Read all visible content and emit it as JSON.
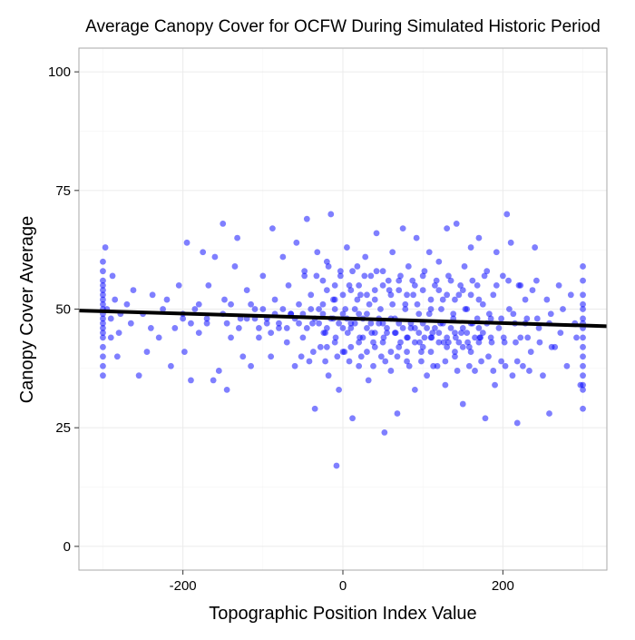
{
  "chart_data": {
    "type": "scatter",
    "title": "Average Canopy Cover for OCFW During Simulated Historic Period",
    "xlabel": "Topographic Position Index Value",
    "ylabel": "Canopy Cover Average",
    "xlim": [
      -330,
      330
    ],
    "ylim": [
      -5,
      105
    ],
    "xticks": [
      -200,
      0,
      200
    ],
    "yticks": [
      0,
      25,
      50,
      75,
      100
    ],
    "xtick_labels": [
      "-200",
      "0",
      "200"
    ],
    "ytick_labels": [
      "0",
      "25",
      "50",
      "75",
      "100"
    ],
    "grid": true,
    "legend": "none",
    "point_color": "#0000ff",
    "point_opacity": 0.5,
    "line_color": "#000000",
    "trend_line": {
      "x": [
        -330,
        330
      ],
      "y": [
        49.7,
        46.4
      ]
    },
    "points": [
      [
        -300,
        60
      ],
      [
        -300,
        58
      ],
      [
        -300,
        56
      ],
      [
        -300,
        55
      ],
      [
        -300,
        54
      ],
      [
        -300,
        53
      ],
      [
        -300,
        52
      ],
      [
        -300,
        51
      ],
      [
        -300,
        50
      ],
      [
        -300,
        49
      ],
      [
        -300,
        48
      ],
      [
        -300,
        47
      ],
      [
        -300,
        46
      ],
      [
        -300,
        45
      ],
      [
        -300,
        44
      ],
      [
        -300,
        42
      ],
      [
        -300,
        40
      ],
      [
        -300,
        38
      ],
      [
        -300,
        36
      ],
      [
        -297,
        63
      ],
      [
        -295,
        50
      ],
      [
        -290,
        48
      ],
      [
        -290,
        44
      ],
      [
        -288,
        57
      ],
      [
        -285,
        52
      ],
      [
        -282,
        40
      ],
      [
        -280,
        45
      ],
      [
        -278,
        49
      ],
      [
        -270,
        51
      ],
      [
        -265,
        47
      ],
      [
        -262,
        54
      ],
      [
        -255,
        36
      ],
      [
        -250,
        49
      ],
      [
        -245,
        41
      ],
      [
        -240,
        46
      ],
      [
        -238,
        53
      ],
      [
        -230,
        44
      ],
      [
        -225,
        50
      ],
      [
        -220,
        52
      ],
      [
        -215,
        38
      ],
      [
        -210,
        46
      ],
      [
        -205,
        55
      ],
      [
        -200,
        48
      ],
      [
        -198,
        41
      ],
      [
        -195,
        64
      ],
      [
        -190,
        35
      ],
      [
        -185,
        50
      ],
      [
        -180,
        45
      ],
      [
        -175,
        62
      ],
      [
        -170,
        47
      ],
      [
        -168,
        55
      ],
      [
        -162,
        35
      ],
      [
        -160,
        61
      ],
      [
        -155,
        37
      ],
      [
        -150,
        68
      ],
      [
        -148,
        52
      ],
      [
        -145,
        33
      ],
      [
        -140,
        44
      ],
      [
        -135,
        59
      ],
      [
        -132,
        65
      ],
      [
        -128,
        48
      ],
      [
        -125,
        40
      ],
      [
        -120,
        54
      ],
      [
        -115,
        38
      ],
      [
        -110,
        50
      ],
      [
        -105,
        44
      ],
      [
        -100,
        57
      ],
      [
        -95,
        47
      ],
      [
        -90,
        40
      ],
      [
        -88,
        67
      ],
      [
        -85,
        52
      ],
      [
        -80,
        46
      ],
      [
        -75,
        61
      ],
      [
        -70,
        43
      ],
      [
        -68,
        55
      ],
      [
        -65,
        49
      ],
      [
        -60,
        38
      ],
      [
        -58,
        64
      ],
      [
        -55,
        51
      ],
      [
        -50,
        44
      ],
      [
        -48,
        57
      ],
      [
        -45,
        69
      ],
      [
        -42,
        39
      ],
      [
        -40,
        53
      ],
      [
        -38,
        47
      ],
      [
        -35,
        29
      ],
      [
        -32,
        62
      ],
      [
        -30,
        50
      ],
      [
        -28,
        42
      ],
      [
        -25,
        56
      ],
      [
        -22,
        45
      ],
      [
        -20,
        60
      ],
      [
        -18,
        36
      ],
      [
        -15,
        70
      ],
      [
        -12,
        48
      ],
      [
        -10,
        52
      ],
      [
        -8,
        17
      ],
      [
        -5,
        33
      ],
      [
        -3,
        58
      ],
      [
        0,
        46
      ],
      [
        2,
        41
      ],
      [
        5,
        63
      ],
      [
        8,
        55
      ],
      [
        10,
        47
      ],
      [
        12,
        27
      ],
      [
        15,
        50
      ],
      [
        18,
        59
      ],
      [
        20,
        38
      ],
      [
        22,
        53
      ],
      [
        25,
        44
      ],
      [
        28,
        61
      ],
      [
        30,
        49
      ],
      [
        32,
        35
      ],
      [
        35,
        57
      ],
      [
        38,
        43
      ],
      [
        40,
        52
      ],
      [
        42,
        66
      ],
      [
        45,
        47
      ],
      [
        48,
        40
      ],
      [
        50,
        58
      ],
      [
        52,
        24
      ],
      [
        55,
        45
      ],
      [
        58,
        54
      ],
      [
        60,
        37
      ],
      [
        62,
        62
      ],
      [
        65,
        48
      ],
      [
        68,
        28
      ],
      [
        70,
        56
      ],
      [
        72,
        43
      ],
      [
        75,
        67
      ],
      [
        78,
        51
      ],
      [
        80,
        39
      ],
      [
        82,
        59
      ],
      [
        85,
        46
      ],
      [
        88,
        53
      ],
      [
        90,
        33
      ],
      [
        92,
        65
      ],
      [
        95,
        49
      ],
      [
        98,
        41
      ],
      [
        100,
        57
      ],
      [
        102,
        44
      ],
      [
        105,
        36
      ],
      [
        108,
        62
      ],
      [
        110,
        50
      ],
      [
        112,
        45
      ],
      [
        115,
        55
      ],
      [
        118,
        38
      ],
      [
        120,
        60
      ],
      [
        122,
        47
      ],
      [
        125,
        52
      ],
      [
        128,
        34
      ],
      [
        130,
        67
      ],
      [
        132,
        43
      ],
      [
        135,
        56
      ],
      [
        138,
        48
      ],
      [
        140,
        41
      ],
      [
        142,
        68
      ],
      [
        145,
        53
      ],
      [
        148,
        45
      ],
      [
        150,
        30
      ],
      [
        152,
        59
      ],
      [
        155,
        50
      ],
      [
        158,
        42
      ],
      [
        160,
        63
      ],
      [
        162,
        47
      ],
      [
        165,
        37
      ],
      [
        168,
        55
      ],
      [
        170,
        65
      ],
      [
        172,
        44
      ],
      [
        175,
        51
      ],
      [
        178,
        27
      ],
      [
        180,
        58
      ],
      [
        182,
        40
      ],
      [
        185,
        48
      ],
      [
        188,
        53
      ],
      [
        190,
        34
      ],
      [
        192,
        62
      ],
      [
        195,
        46
      ],
      [
        198,
        39
      ],
      [
        200,
        57
      ],
      [
        202,
        43
      ],
      [
        205,
        70
      ],
      [
        208,
        50
      ],
      [
        210,
        64
      ],
      [
        212,
        36
      ],
      [
        215,
        47
      ],
      [
        218,
        26
      ],
      [
        220,
        55
      ],
      [
        222,
        44
      ],
      [
        225,
        38
      ],
      [
        228,
        52
      ],
      [
        230,
        48
      ],
      [
        235,
        41
      ],
      [
        240,
        63
      ],
      [
        242,
        56
      ],
      [
        245,
        46
      ],
      [
        250,
        36
      ],
      [
        255,
        52
      ],
      [
        258,
        28
      ],
      [
        260,
        49
      ],
      [
        265,
        42
      ],
      [
        270,
        55
      ],
      [
        272,
        45
      ],
      [
        275,
        50
      ],
      [
        280,
        38
      ],
      [
        285,
        53
      ],
      [
        290,
        47
      ],
      [
        292,
        44
      ],
      [
        297,
        34
      ],
      [
        300,
        59
      ],
      [
        300,
        56
      ],
      [
        300,
        53
      ],
      [
        300,
        51
      ],
      [
        300,
        50
      ],
      [
        300,
        48
      ],
      [
        300,
        47
      ],
      [
        300,
        46
      ],
      [
        300,
        44
      ],
      [
        300,
        42
      ],
      [
        300,
        40
      ],
      [
        300,
        38
      ],
      [
        300,
        36
      ],
      [
        300,
        34
      ],
      [
        300,
        33
      ],
      [
        300,
        29
      ],
      [
        -60,
        48
      ],
      [
        -55,
        47
      ],
      [
        -50,
        49
      ],
      [
        -45,
        46
      ],
      [
        -40,
        50
      ],
      [
        -35,
        48
      ],
      [
        -30,
        47
      ],
      [
        -25,
        49
      ],
      [
        -20,
        46
      ],
      [
        -15,
        48
      ],
      [
        -10,
        50
      ],
      [
        -5,
        47
      ],
      [
        0,
        49
      ],
      [
        5,
        48
      ],
      [
        10,
        46
      ],
      [
        15,
        47
      ],
      [
        20,
        49
      ],
      [
        25,
        48
      ],
      [
        30,
        46
      ],
      [
        35,
        47
      ],
      [
        40,
        45
      ],
      [
        45,
        48
      ],
      [
        50,
        47
      ],
      [
        55,
        46
      ],
      [
        60,
        48
      ],
      [
        65,
        45
      ],
      [
        70,
        47
      ],
      [
        75,
        46
      ],
      [
        80,
        44
      ],
      [
        85,
        47
      ],
      [
        90,
        46
      ],
      [
        95,
        45
      ],
      [
        100,
        47
      ],
      [
        105,
        46
      ],
      [
        110,
        44
      ],
      [
        115,
        46
      ],
      [
        120,
        45
      ],
      [
        125,
        47
      ],
      [
        130,
        44
      ],
      [
        135,
        46
      ],
      [
        140,
        45
      ],
      [
        145,
        43
      ],
      [
        150,
        46
      ],
      [
        155,
        45
      ],
      [
        160,
        47
      ],
      [
        165,
        44
      ],
      [
        170,
        46
      ],
      [
        175,
        45
      ],
      [
        180,
        47
      ],
      [
        185,
        44
      ],
      [
        -110,
        48
      ],
      [
        -105,
        46
      ],
      [
        -100,
        50
      ],
      [
        -95,
        48
      ],
      [
        -90,
        45
      ],
      [
        -85,
        49
      ],
      [
        -80,
        47
      ],
      [
        -75,
        50
      ],
      [
        -70,
        46
      ],
      [
        -65,
        49
      ],
      [
        -150,
        49
      ],
      [
        -145,
        47
      ],
      [
        -140,
        51
      ],
      [
        -130,
        46
      ],
      [
        -120,
        48
      ],
      [
        -115,
        51
      ],
      [
        -200,
        49
      ],
      [
        -190,
        47
      ],
      [
        -180,
        51
      ],
      [
        -170,
        48
      ],
      [
        -20,
        42
      ],
      [
        -10,
        43
      ],
      [
        0,
        41
      ],
      [
        10,
        42
      ],
      [
        20,
        43
      ],
      [
        30,
        41
      ],
      [
        40,
        42
      ],
      [
        50,
        43
      ],
      [
        60,
        41
      ],
      [
        70,
        42
      ],
      [
        80,
        41
      ],
      [
        90,
        43
      ],
      [
        100,
        42
      ],
      [
        110,
        41
      ],
      [
        120,
        43
      ],
      [
        130,
        42
      ],
      [
        140,
        40
      ],
      [
        150,
        42
      ],
      [
        160,
        41
      ],
      [
        170,
        43
      ],
      [
        -20,
        54
      ],
      [
        -10,
        55
      ],
      [
        0,
        53
      ],
      [
        10,
        54
      ],
      [
        20,
        55
      ],
      [
        30,
        53
      ],
      [
        40,
        54
      ],
      [
        50,
        55
      ],
      [
        60,
        53
      ],
      [
        70,
        54
      ],
      [
        80,
        53
      ],
      [
        90,
        55
      ],
      [
        100,
        54
      ],
      [
        110,
        52
      ],
      [
        120,
        54
      ],
      [
        130,
        53
      ],
      [
        140,
        52
      ],
      [
        150,
        54
      ],
      [
        160,
        53
      ],
      [
        170,
        52
      ],
      [
        -25,
        51
      ],
      [
        -12,
        52
      ],
      [
        3,
        50
      ],
      [
        18,
        52
      ],
      [
        33,
        51
      ],
      [
        47,
        50
      ],
      [
        62,
        51
      ],
      [
        78,
        50
      ],
      [
        93,
        51
      ],
      [
        108,
        49
      ],
      [
        123,
        50
      ],
      [
        138,
        49
      ],
      [
        153,
        50
      ],
      [
        168,
        48
      ],
      [
        183,
        49
      ],
      [
        198,
        48
      ],
      [
        213,
        49
      ],
      [
        228,
        47
      ],
      [
        243,
        48
      ],
      [
        258,
        47
      ],
      [
        -24,
        45
      ],
      [
        -9,
        44
      ],
      [
        6,
        45
      ],
      [
        21,
        44
      ],
      [
        36,
        45
      ],
      [
        51,
        44
      ],
      [
        66,
        45
      ],
      [
        81,
        44
      ],
      [
        96,
        43
      ],
      [
        111,
        44
      ],
      [
        126,
        43
      ],
      [
        141,
        44
      ],
      [
        156,
        43
      ],
      [
        171,
        44
      ],
      [
        186,
        43
      ],
      [
        201,
        44
      ],
      [
        216,
        43
      ],
      [
        231,
        44
      ],
      [
        246,
        43
      ],
      [
        261,
        42
      ],
      [
        -52,
        40
      ],
      [
        -37,
        41
      ],
      [
        -22,
        39
      ],
      [
        -7,
        40
      ],
      [
        8,
        39
      ],
      [
        23,
        40
      ],
      [
        38,
        38
      ],
      [
        53,
        39
      ],
      [
        68,
        40
      ],
      [
        83,
        38
      ],
      [
        98,
        39
      ],
      [
        113,
        38
      ],
      [
        128,
        39
      ],
      [
        143,
        37
      ],
      [
        158,
        38
      ],
      [
        173,
        39
      ],
      [
        188,
        37
      ],
      [
        203,
        38
      ],
      [
        218,
        39
      ],
      [
        233,
        37
      ],
      [
        -48,
        58
      ],
      [
        -33,
        57
      ],
      [
        -18,
        59
      ],
      [
        -3,
        57
      ],
      [
        12,
        58
      ],
      [
        27,
        57
      ],
      [
        42,
        58
      ],
      [
        57,
        56
      ],
      [
        72,
        57
      ],
      [
        87,
        56
      ],
      [
        102,
        58
      ],
      [
        117,
        56
      ],
      [
        132,
        57
      ],
      [
        147,
        55
      ],
      [
        162,
        56
      ],
      [
        177,
        57
      ],
      [
        192,
        55
      ],
      [
        207,
        56
      ],
      [
        222,
        55
      ],
      [
        237,
        54
      ]
    ]
  }
}
